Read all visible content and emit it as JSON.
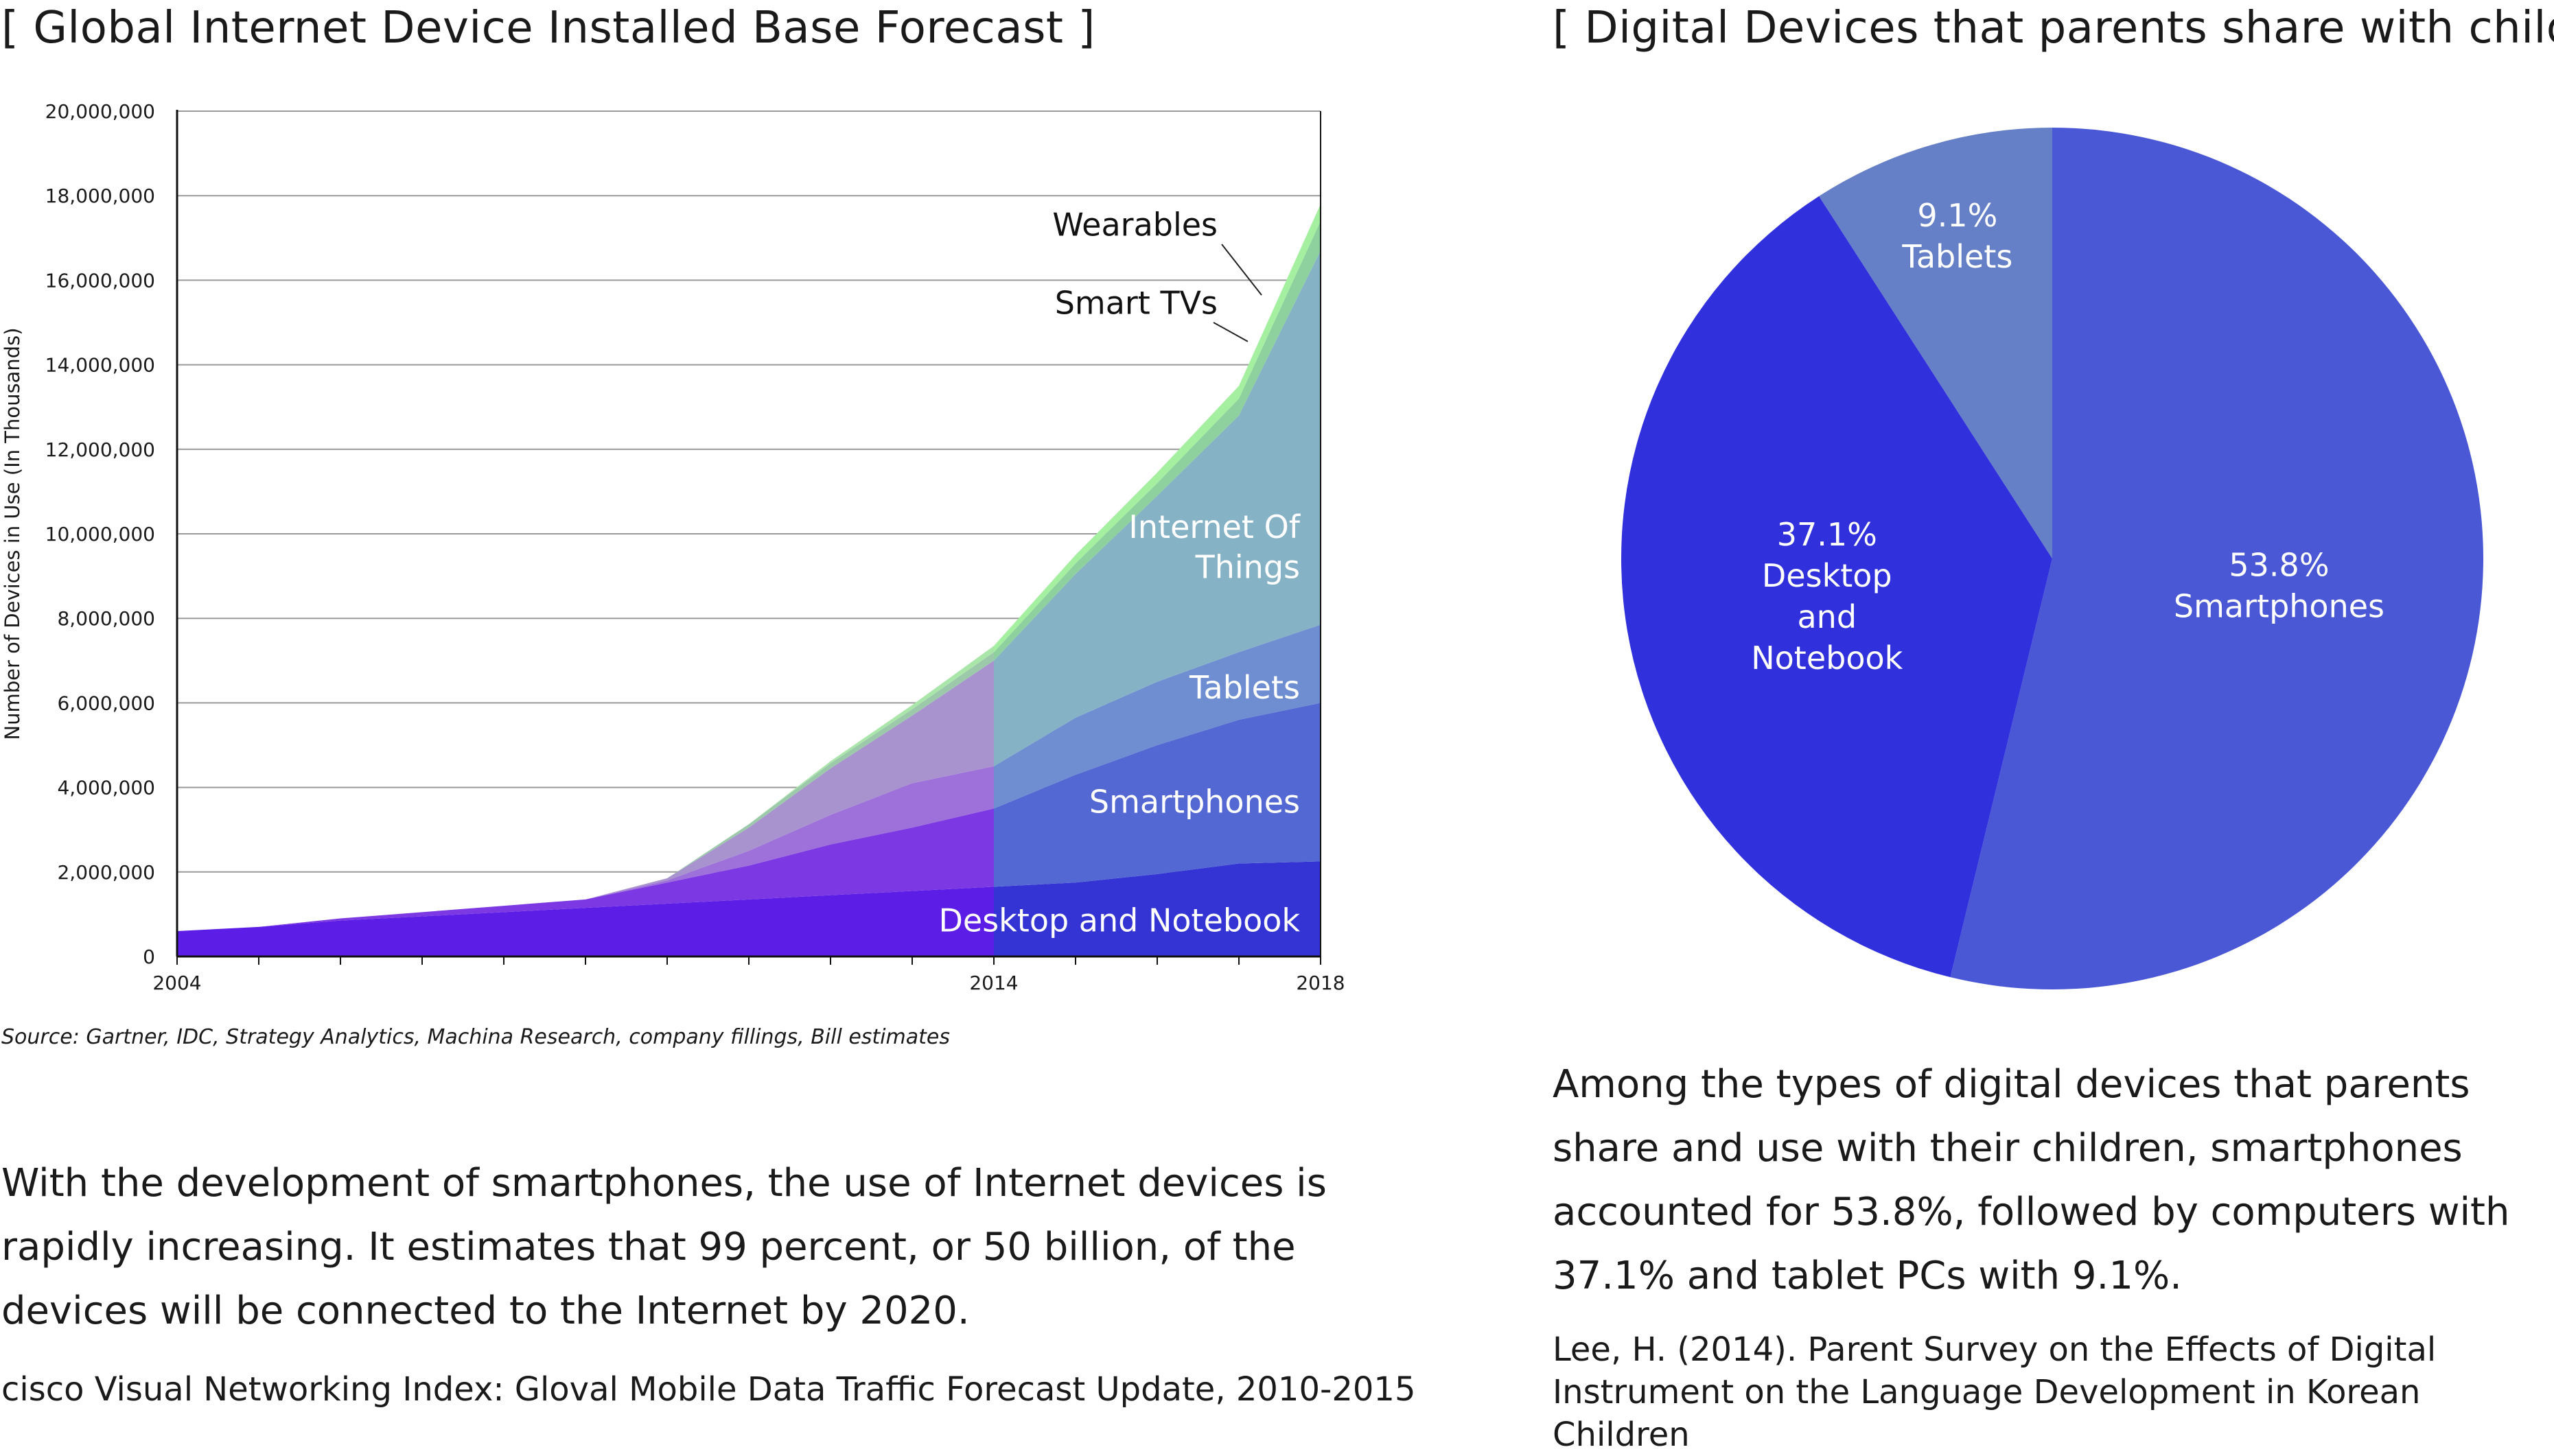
{
  "left": {
    "title": "[ Global Internet Device Installed Base Forecast ]",
    "source": "Source: Gartner, IDC, Strategy Analytics, Machina Research, company fillings, Bill estimates",
    "paragraph": "With the development of smartphones, the use of Internet devices is rapidly increasing. It estimates that 99 percent, or 50 billion, of the devices will be connected to the Internet by 2020.",
    "reference": "cisco Visual Networking Index: Gloval Mobile Data Traffic Forecast Update, 2010-2015"
  },
  "right": {
    "title": "[ Digital Devices that parents share with children ]",
    "paragraph": "Among the types of digital devices that parents share and use with their children, smartphones accounted for 53.8%, followed by computers with 37.1% and tablet PCs with 9.1%.",
    "reference": "Lee, H. (2014). Parent Survey on the Effects of Digital Instrument on the Language Development in Korean Children"
  },
  "chart_data": [
    {
      "type": "area",
      "stacked": true,
      "ylabel": "Number of Devices in Use (In Thousands)",
      "xlim": [
        2004,
        2018
      ],
      "ylim": [
        0,
        20000000
      ],
      "x_tick_labels": [
        "2004",
        "2014",
        "2018"
      ],
      "y_ticks": [
        0,
        2000000,
        4000000,
        6000000,
        8000000,
        10000000,
        12000000,
        14000000,
        16000000,
        18000000,
        20000000
      ],
      "y_tick_labels": [
        "0",
        "2,000,000",
        "4,000,000",
        "6,000,000",
        "8,000,000",
        "10,000,000",
        "12,000,000",
        "14,000,000",
        "16,000,000",
        "18,000,000",
        "20,000,000"
      ],
      "grid": true,
      "forecast_from": 2014,
      "x": [
        2004,
        2005,
        2006,
        2007,
        2008,
        2009,
        2010,
        2011,
        2012,
        2013,
        2014,
        2015,
        2016,
        2017,
        2018
      ],
      "series": [
        {
          "name": "Desktop and Notebook",
          "values": [
            600000,
            700000,
            850000,
            950000,
            1050000,
            1150000,
            1250000,
            1350000,
            1450000,
            1550000,
            1650000,
            1750000,
            1950000,
            2200000,
            2250000
          ],
          "colors": [
            "#5c1ee6",
            "#3434d4"
          ]
        },
        {
          "name": "Smartphones",
          "values": [
            0,
            0,
            50000,
            100000,
            150000,
            200000,
            500000,
            800000,
            1200000,
            1500000,
            1850000,
            2550000,
            3050000,
            3400000,
            3750000
          ],
          "colors": [
            "#7c38e2",
            "#5468d3"
          ]
        },
        {
          "name": "Tablets",
          "values": [
            0,
            0,
            0,
            0,
            0,
            0,
            50000,
            350000,
            700000,
            1050000,
            1000000,
            1350000,
            1500000,
            1600000,
            1850000
          ],
          "colors": [
            "#9e70da",
            "#6f8ed1"
          ]
        },
        {
          "name": "Internet Of Things",
          "values": [
            0,
            0,
            0,
            0,
            0,
            0,
            50000,
            550000,
            1100000,
            1600000,
            2500000,
            3400000,
            4400000,
            5600000,
            8850000
          ],
          "colors": [
            "#a893cf",
            "#86b2c6"
          ]
        },
        {
          "name": "Smart TVs",
          "values": [
            0,
            0,
            0,
            0,
            0,
            0,
            0,
            80000,
            120000,
            150000,
            200000,
            250000,
            300000,
            400000,
            700000
          ],
          "colors": [
            "#9bc9aa",
            "#8ed19e"
          ]
        },
        {
          "name": "Wearables",
          "values": [
            0,
            0,
            0,
            0,
            0,
            0,
            0,
            0,
            50000,
            100000,
            150000,
            200000,
            250000,
            300000,
            400000
          ],
          "colors": [
            "#aae6aa",
            "#a4f0a0"
          ]
        }
      ]
    },
    {
      "type": "pie",
      "slices": [
        {
          "label": "Smartphones",
          "value": 53.8,
          "display": "53.8%",
          "color": "#4a58d6"
        },
        {
          "label": "Desktop and Notebook",
          "value": 37.1,
          "display": "37.1%",
          "color": "#3030dc",
          "label_lines": [
            "Desktop",
            "and",
            "Notebook"
          ]
        },
        {
          "label": "Tablets",
          "value": 9.1,
          "display": "9.1%",
          "color": "#6680c8"
        }
      ],
      "label_color": "#ffffff"
    }
  ]
}
